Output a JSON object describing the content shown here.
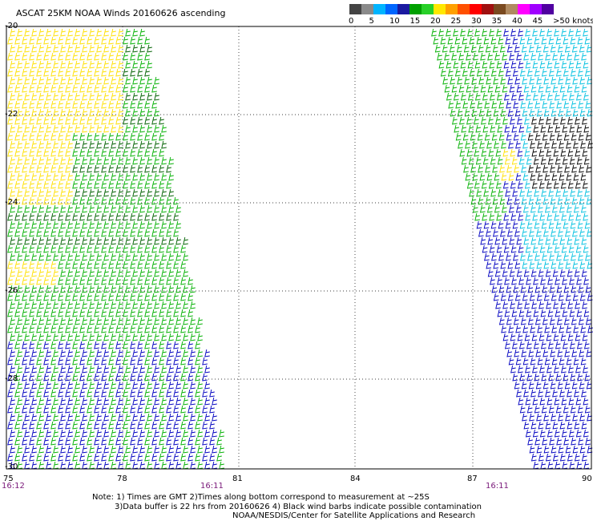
{
  "title": "ASCAT 25KM NOAA Winds 20160626 ascending",
  "colorbar": {
    "labels": [
      "0",
      "5",
      "10",
      "15",
      "20",
      "25",
      "30",
      "35",
      "40",
      "45",
      ">50 knots"
    ],
    "colors": [
      "#444444",
      "#8a8a8a",
      "#00b4ff",
      "#0066ff",
      "#1a1aa0",
      "#00a000",
      "#28d028",
      "#ffe800",
      "#ffa000",
      "#ff5000",
      "#ff0000",
      "#a01010",
      "#7a4a20",
      "#b08a60",
      "#ff00ff",
      "#a000ff",
      "#5000a0"
    ]
  },
  "map": {
    "lat_labels": [
      "-20",
      "-22",
      "-24",
      "-26",
      "-28",
      "-30"
    ],
    "lon_labels": [
      "75",
      "78",
      "81",
      "84",
      "87",
      "90"
    ],
    "times": [
      "16:12",
      "16:11",
      "16:11"
    ],
    "barb_colors": {
      "calm": "#000000",
      "light": "#00c0e0",
      "moderate": "#0000c0",
      "fresh": "#00b000",
      "strong": "#006000",
      "gale": "#ffe000"
    }
  },
  "notes": {
    "line1": "Note: 1) Times are GMT 2)Times along bottom correspond to measurement at ~25S",
    "line2": "3)Data buffer is 22 hrs from 20160626 4) Black wind barbs indicate possible contamination",
    "line3": "NOAA/NESDIS/Center for Satellite Applications and Research"
  }
}
